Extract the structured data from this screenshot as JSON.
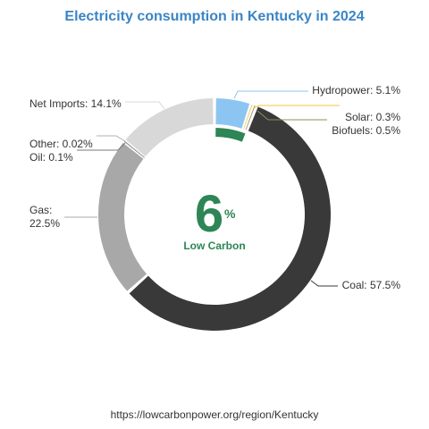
{
  "chart_data": {
    "type": "pie",
    "style": "donut",
    "title": "Electricity consumption in Kentucky in 2024",
    "center": {
      "value": "6",
      "unit": "%",
      "label": "Low Carbon",
      "color": "#2e8555",
      "fraction": 0.06
    },
    "slices": [
      {
        "name": "Hydropower",
        "value": 5.1,
        "label": "Hydropower: 5.1%",
        "color": "#8cc5f2"
      },
      {
        "name": "Solar",
        "value": 0.3,
        "label": "Solar: 0.3%",
        "color": "#f5c742"
      },
      {
        "name": "Biofuels",
        "value": 0.5,
        "label": "Biofuels: 0.5%",
        "color": "#8c8c5a"
      },
      {
        "name": "Coal",
        "value": 57.5,
        "label": "Coal: 57.5%",
        "color": "#393939"
      },
      {
        "name": "Gas",
        "value": 22.5,
        "label_lines": [
          "Gas:",
          "22.5%"
        ],
        "color": "#a8a8a8"
      },
      {
        "name": "Oil",
        "value": 0.1,
        "label": "Oil: 0.1%",
        "color": "#7a7a7a"
      },
      {
        "name": "Other",
        "value": 0.02,
        "label": "Other: 0.02%",
        "color": "#b0b0b0"
      },
      {
        "name": "Net Imports",
        "value": 14.1,
        "label": "Net Imports: 14.1%",
        "color": "#d8d8d8"
      }
    ]
  },
  "footer": {
    "source_url": "https://lowcarbonpower.org/region/Kentucky"
  }
}
